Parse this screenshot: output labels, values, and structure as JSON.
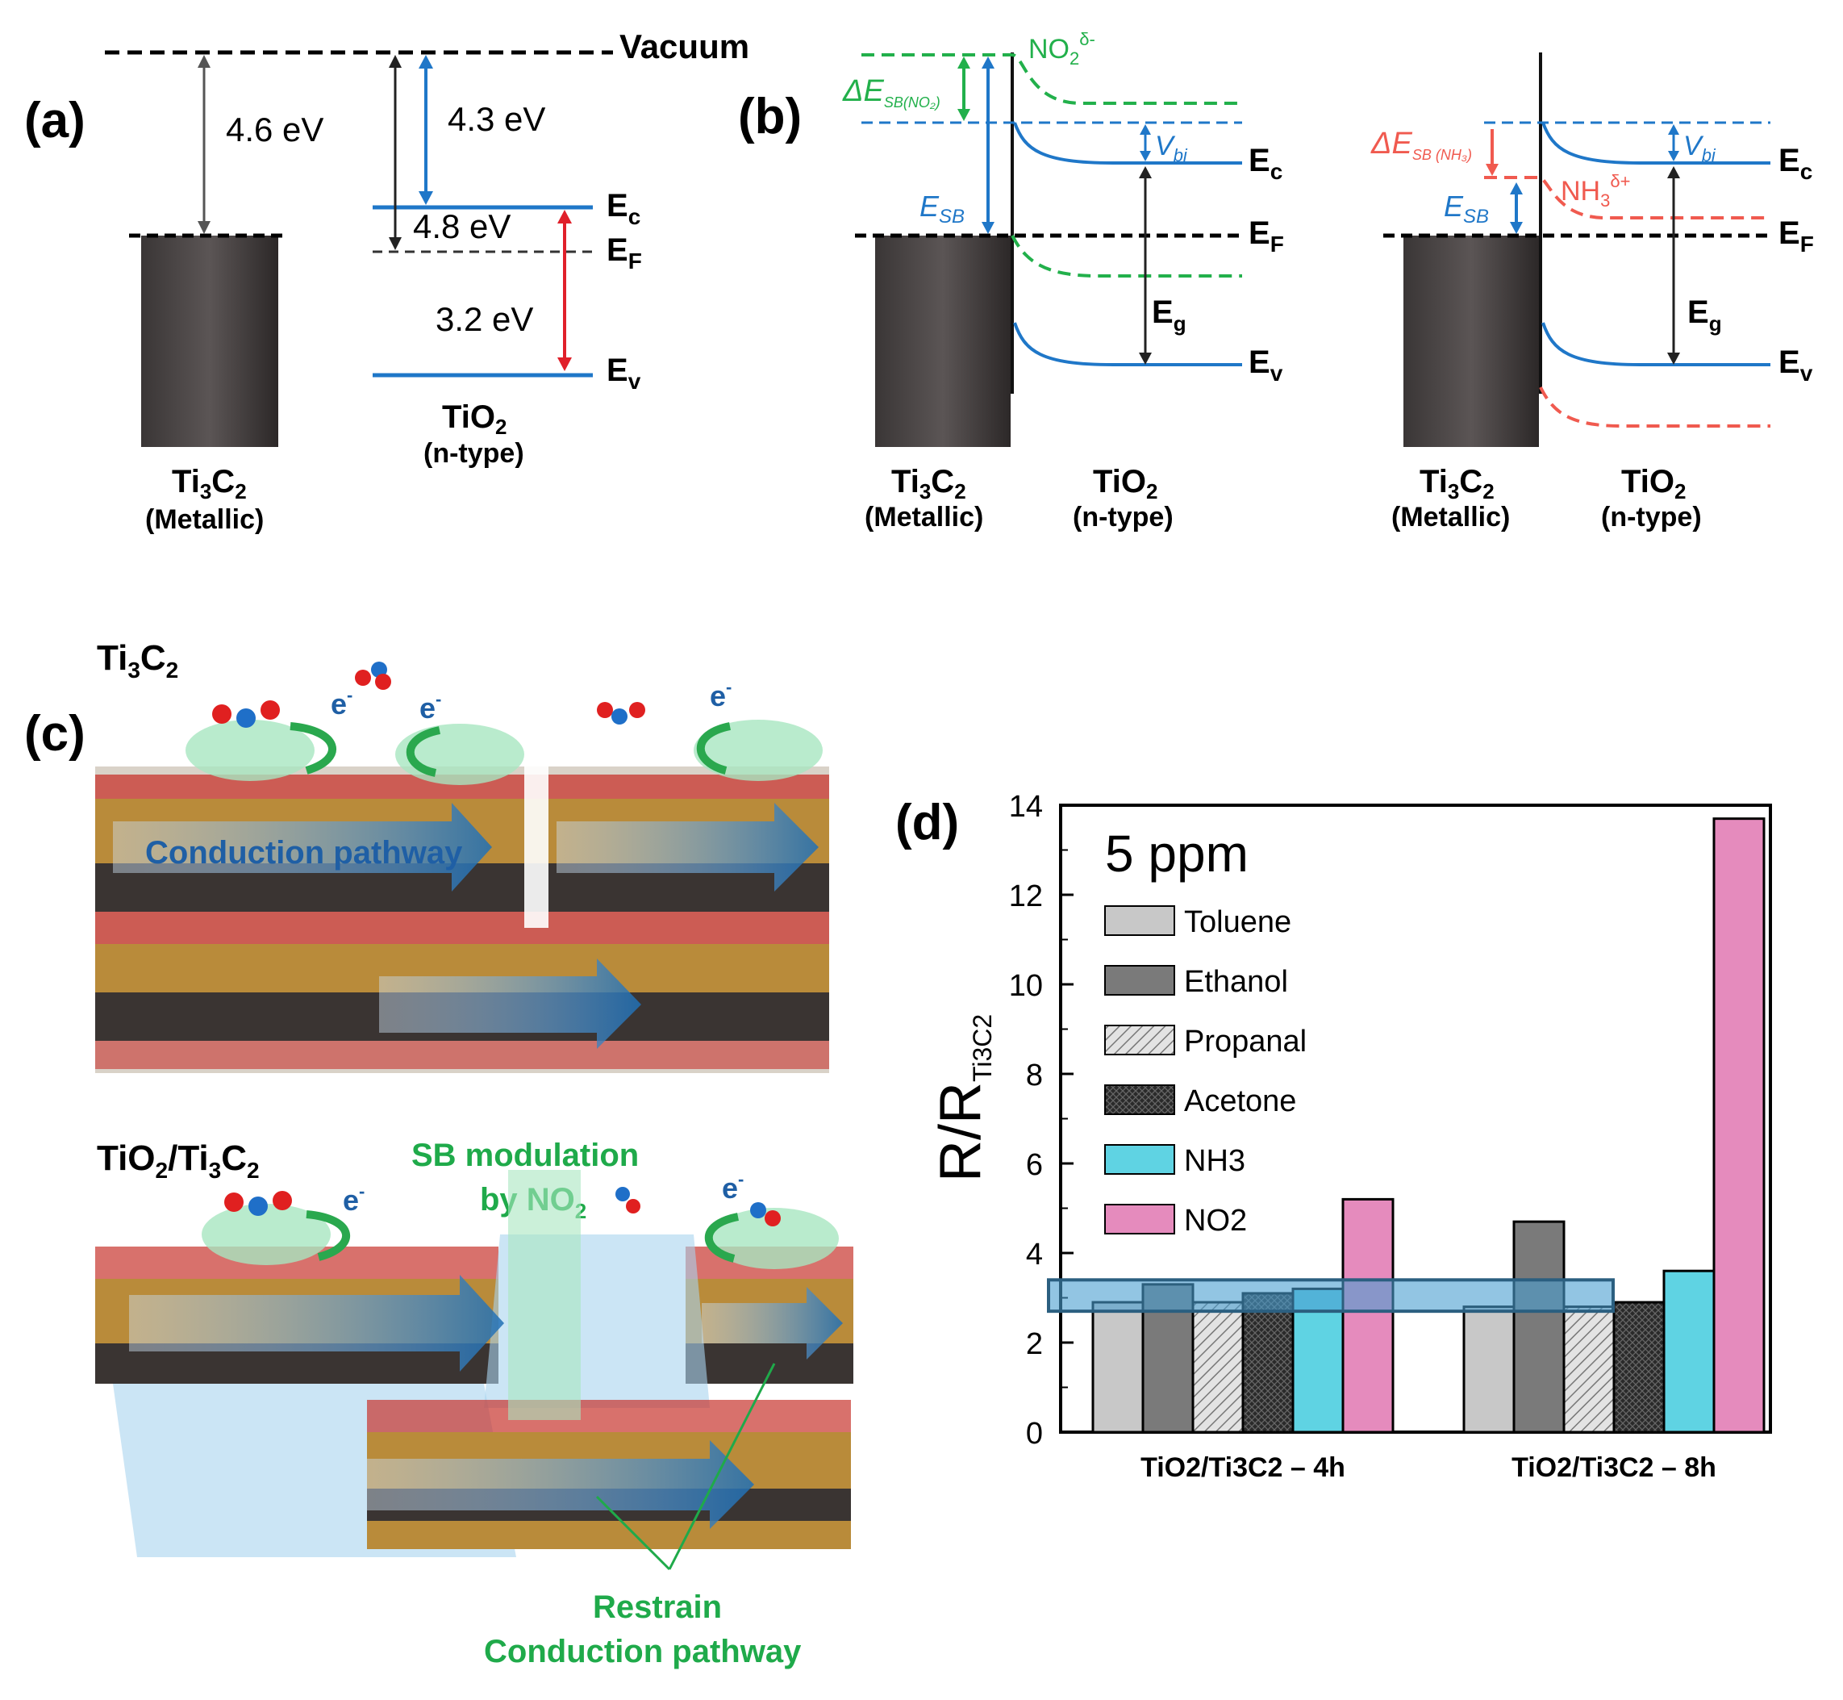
{
  "panel_labels": {
    "a": "(a)",
    "b": "(b)",
    "c": "(c)",
    "d": "(d)"
  },
  "colors": {
    "metal": "#4a4544",
    "band_blue": "#1f77c8",
    "no2_green": "#22b04b",
    "nh3_red": "#f05a4f",
    "arrow_red": "#e0202a",
    "label_green": "#1faa4a",
    "toluene": "#c8c8c8",
    "ethanol": "#7a7a7a",
    "propanal": "#d2d2d2",
    "acetone": "#2a2a2a",
    "nh3": "#5fd3e3",
    "no2": "#e58bbd",
    "highlight": "#4a9fd0"
  },
  "panel_a": {
    "vacuum": "Vacuum",
    "metal_wf": "4.6 eV",
    "tio2_ea": "4.3 eV",
    "tio2_wf": "4.8 eV",
    "band_gap": "3.2 eV",
    "ec": "E",
    "ec_sub": "c",
    "ef": "E",
    "ef_sub": "F",
    "ev": "E",
    "ev_sub": "v",
    "metal_name": "Ti",
    "metal_sub1": "3",
    "metal_c": "C",
    "metal_sub2": "2",
    "metal_type": "(Metallic)",
    "semi_name": "TiO",
    "semi_sub": "2",
    "semi_type": "(n-type)"
  },
  "panel_b": {
    "no2_label": "NO",
    "no2_sub": "2",
    "no2_sup": "δ-",
    "delta_no2": "ΔE",
    "delta_no2_sub": "SB(NO₂)",
    "esb": "E",
    "esb_sub": "SB",
    "vbi": "V",
    "vbi_sub": "bi",
    "eg": "E",
    "eg_sub": "g",
    "nh3_label": "NH",
    "nh3_sub": "3",
    "nh3_sup": "δ+",
    "delta_nh3": "ΔE",
    "delta_nh3_sub": "SB (NH₃)"
  },
  "panel_c": {
    "title_top": "Ti3C2",
    "title_bottom": "TiO2/Ti3C2",
    "electron": "e",
    "conduction": "Conduction pathway",
    "sb_mod_1": "SB modulation",
    "sb_mod_2": "by NO",
    "sb_mod_sub": "2",
    "restrain_1": "Restrain",
    "restrain_2": "Conduction pathway"
  },
  "chart_data": {
    "type": "bar",
    "title": "5 ppm",
    "ylabel": "R/R",
    "ylabel_sub": "Ti3C2",
    "ylim": [
      0,
      14
    ],
    "yticks": [
      0,
      2,
      4,
      6,
      8,
      10,
      12,
      14
    ],
    "categories": [
      "TiO2/Ti3C2 – 4h",
      "TiO2/Ti3C2 – 8h"
    ],
    "series": [
      {
        "name": "Toluene",
        "values": [
          2.9,
          2.8
        ]
      },
      {
        "name": "Ethanol",
        "values": [
          3.3,
          4.7
        ]
      },
      {
        "name": "Propanal",
        "values": [
          2.9,
          2.8
        ]
      },
      {
        "name": "Acetone",
        "values": [
          3.1,
          2.9
        ]
      },
      {
        "name": "NH3",
        "values": [
          3.2,
          3.6
        ]
      },
      {
        "name": "NO2",
        "values": [
          5.2,
          13.7
        ]
      }
    ],
    "highlight_band": [
      2.7,
      3.4
    ],
    "legend_position": "top-left"
  }
}
